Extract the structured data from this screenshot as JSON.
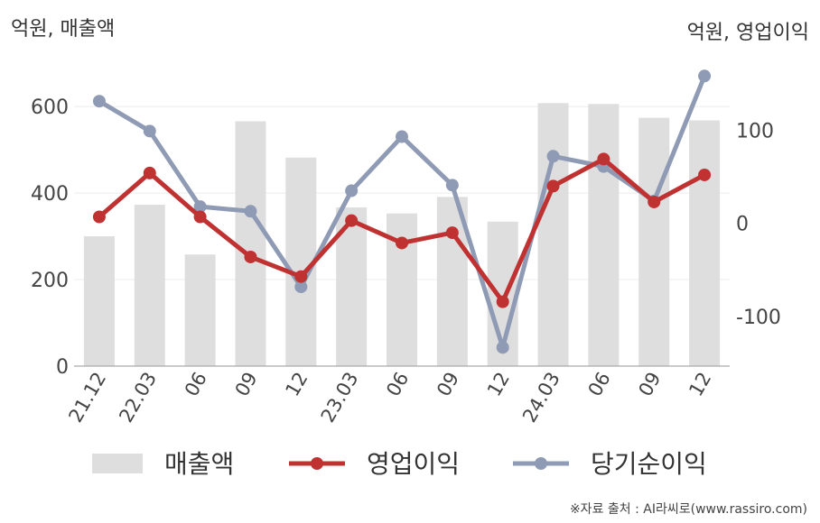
{
  "header": {
    "left_unit": "억원, 매출액",
    "right_unit": "억원, 영업이익"
  },
  "source": "※자료 출처 : AI라씨로(www.rassiro.com)",
  "chart_data": {
    "type": "bar",
    "categories": [
      "21.12",
      "22.03",
      "06",
      "09",
      "12",
      "23.03",
      "06",
      "09",
      "12",
      "24.03",
      "06",
      "09",
      "12"
    ],
    "y_left": {
      "ticks": [
        0,
        200,
        400,
        600
      ],
      "range": [
        0,
        690
      ]
    },
    "y_right": {
      "ticks": [
        -100,
        0,
        100
      ],
      "range": [
        -153,
        167
      ]
    },
    "grid": true,
    "legend_position": "bottom",
    "series": [
      {
        "name": "매출액",
        "type": "bar",
        "axis": "left",
        "color": "#dedede",
        "values": [
          300,
          373,
          258,
          566,
          482,
          367,
          353,
          391,
          334,
          608,
          606,
          574,
          568
        ]
      },
      {
        "name": "영업이익",
        "type": "line",
        "axis": "right",
        "color": "#c03232",
        "values": [
          7,
          54,
          7,
          -36,
          -57,
          3,
          -21,
          -10,
          -84,
          40,
          69,
          23,
          52
        ]
      },
      {
        "name": "당기순이익",
        "type": "line",
        "axis": "right",
        "color": "#8f9bb5",
        "values": [
          131,
          99,
          18,
          13,
          -68,
          35,
          93,
          41,
          -133,
          72,
          61,
          24,
          158
        ]
      }
    ]
  }
}
